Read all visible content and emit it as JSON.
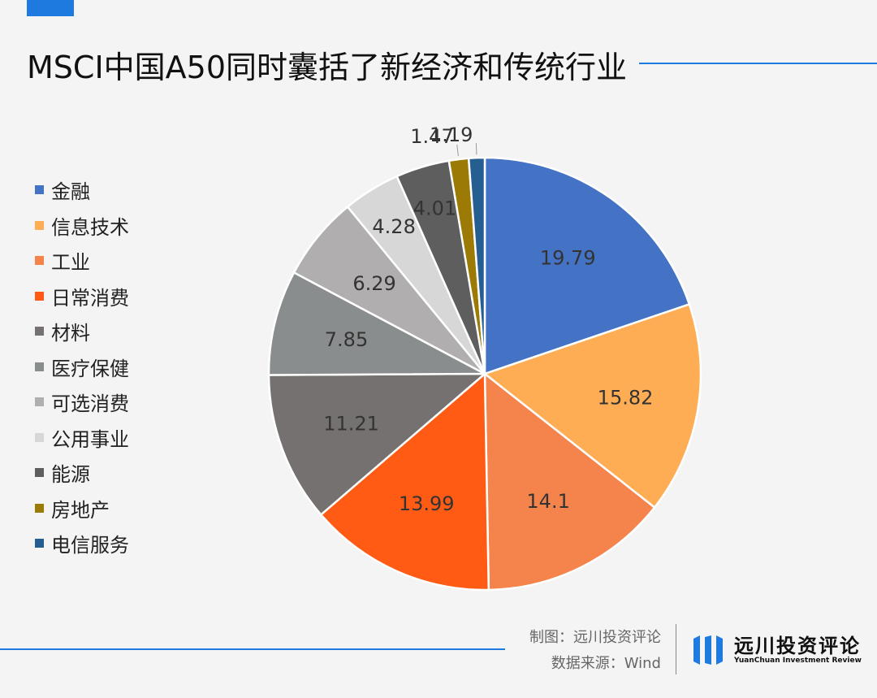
{
  "page": {
    "title": "MSCI中国A50同时囊括了新经济和传统行业",
    "accent_color": "#1f7ae0"
  },
  "footer": {
    "credit_maker": "制图：远川投资评论",
    "credit_source": "数据来源：Wind",
    "brand_name": "远川投资评论",
    "brand_subtitle": "YuanChuan Investment Review"
  },
  "chart_data": {
    "type": "pie",
    "title": "",
    "legend_position": "left",
    "start_angle": "top",
    "direction": "clockwise",
    "slices": [
      {
        "label": "金融",
        "value": 19.79,
        "value_label": "19.79",
        "color": "#4472c4"
      },
      {
        "label": "信息技术",
        "value": 15.82,
        "value_label": "15.82",
        "color": "#ffad55"
      },
      {
        "label": "工业",
        "value": 14.1,
        "value_label": "14.1",
        "color": "#f4844c"
      },
      {
        "label": "日常消费",
        "value": 13.99,
        "value_label": "13.99",
        "color": "#ff5b14"
      },
      {
        "label": "材料",
        "value": 11.21,
        "value_label": "11.21",
        "color": "#767171"
      },
      {
        "label": "医疗保健",
        "value": 7.85,
        "value_label": "7.85",
        "color": "#8a8d8e"
      },
      {
        "label": "可选消费",
        "value": 6.29,
        "value_label": "6.29",
        "color": "#b0aeae"
      },
      {
        "label": "公用事业",
        "value": 4.28,
        "value_label": "4.28",
        "color": "#d7d7d7"
      },
      {
        "label": "能源",
        "value": 4.01,
        "value_label": "4.01",
        "color": "#5e5e5e"
      },
      {
        "label": "房地产",
        "value": 1.47,
        "value_label": "1.47",
        "color": "#9c7a06"
      },
      {
        "label": "电信服务",
        "value": 1.19,
        "value_label": "1.19",
        "color": "#255e91"
      }
    ]
  }
}
